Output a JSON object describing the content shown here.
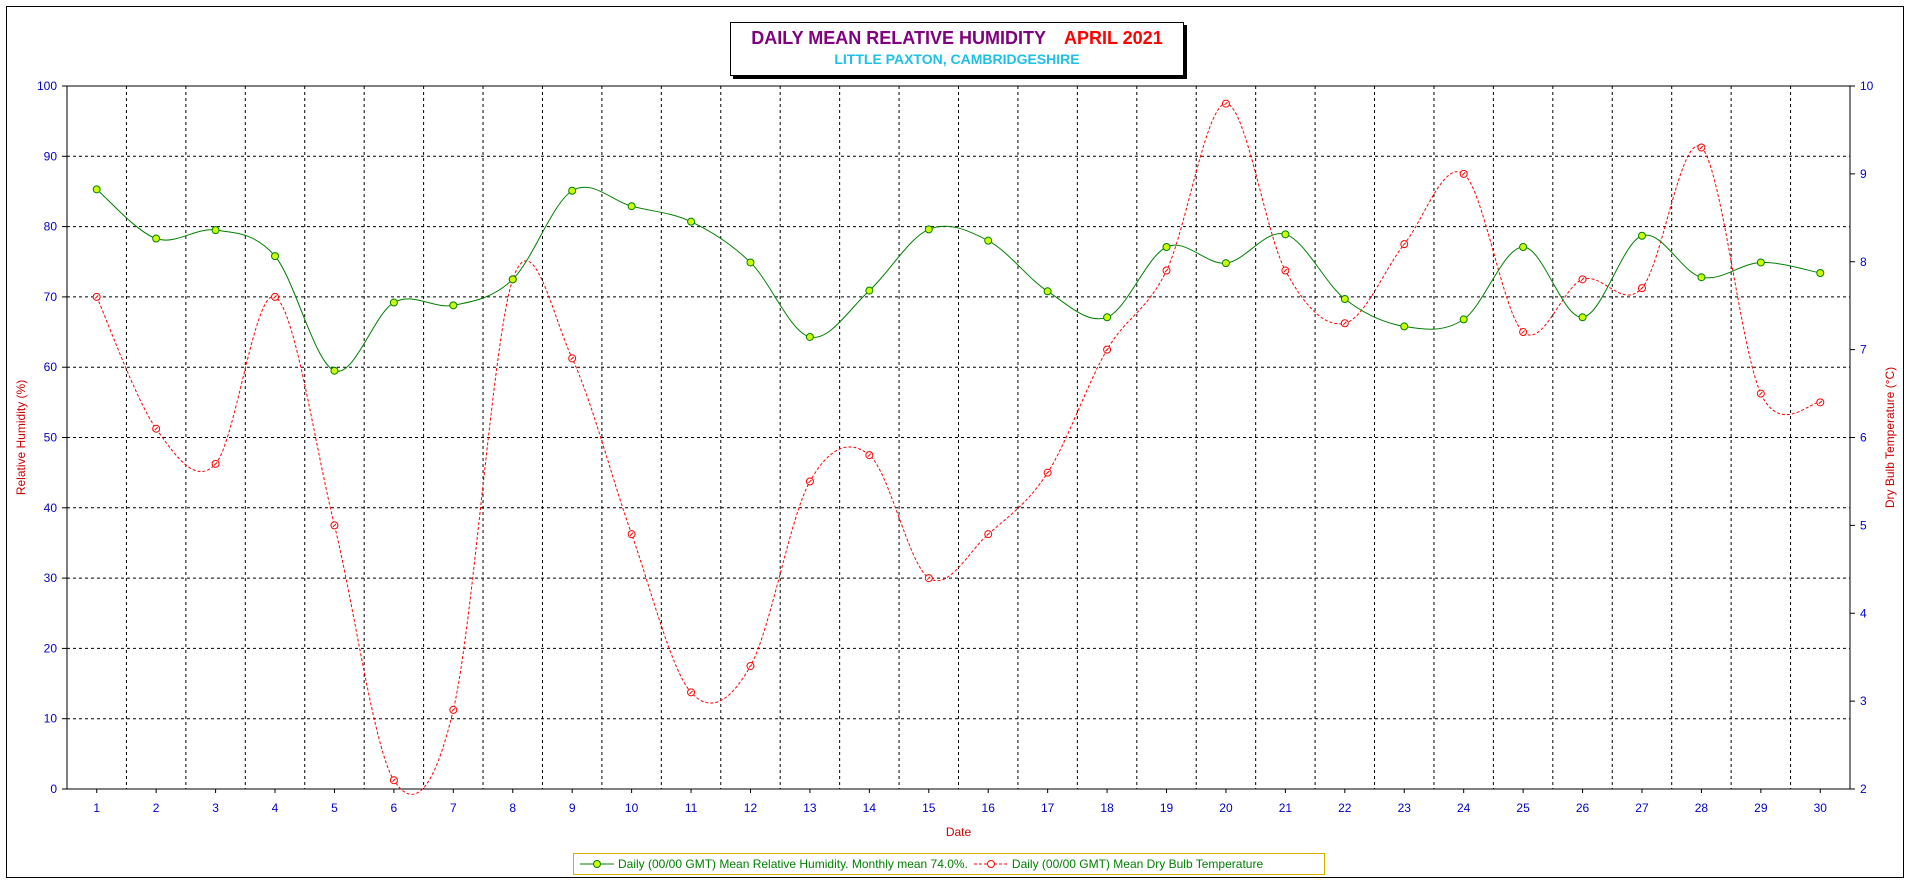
{
  "header": {
    "title": "DAILY MEAN RELATIVE HUMIDITY",
    "month": "APRIL 2021",
    "subtitle": "LITTLE PAXTON, CAMBRIDGESHIRE"
  },
  "legend": {
    "humidity": "Daily (00/00 GMT) Mean Relative Humidity. Monthly mean 74.0%.",
    "temperature": "Daily (00/00 GMT) Mean Dry Bulb Temperature"
  },
  "colors": {
    "humidity_line": "#008000",
    "humidity_marker": "#ccff00",
    "temperature_line": "#ff0000",
    "axis_ticks": "#0000cc",
    "axis_title": "#cc0000"
  },
  "chart_data": {
    "type": "line",
    "title": "DAILY MEAN RELATIVE HUMIDITY APRIL 2021",
    "subtitle": "LITTLE PAXTON, CAMBRIDGESHIRE",
    "xlabel": "Date",
    "ylabel": "Relative Humidity (%)",
    "y2label": "Dry Bulb Temperature (°C)",
    "x": [
      1,
      2,
      3,
      4,
      5,
      6,
      7,
      8,
      9,
      10,
      11,
      12,
      13,
      14,
      15,
      16,
      17,
      18,
      19,
      20,
      21,
      22,
      23,
      24,
      25,
      26,
      27,
      28,
      29,
      30
    ],
    "ylim": [
      0,
      100
    ],
    "y2lim": [
      2,
      10
    ],
    "yticks": [
      0,
      10,
      20,
      30,
      40,
      50,
      60,
      70,
      80,
      90,
      100
    ],
    "y2ticks": [
      2,
      3,
      4,
      5,
      6,
      7,
      8,
      9,
      10
    ],
    "grid": true,
    "legend_position": "bottom",
    "series": [
      {
        "name": "Daily (00/00 GMT) Mean Relative Humidity. Monthly mean 74.0%.",
        "axis": "left",
        "values": [
          85.3,
          78.3,
          79.5,
          75.8,
          59.5,
          69.2,
          68.8,
          72.5,
          85.1,
          82.9,
          80.7,
          74.9,
          64.3,
          70.9,
          79.6,
          78.0,
          70.8,
          67.1,
          77.1,
          74.8,
          78.9,
          69.7,
          65.8,
          66.8,
          77.1,
          67.1,
          78.7,
          72.8,
          74.9,
          73.4
        ]
      },
      {
        "name": "Daily (00/00 GMT) Mean Dry Bulb Temperature",
        "axis": "right",
        "values": [
          7.6,
          6.1,
          5.7,
          7.6,
          5.0,
          2.1,
          2.9,
          7.8,
          6.9,
          4.9,
          3.1,
          3.4,
          5.5,
          5.8,
          4.4,
          4.9,
          5.6,
          7.0,
          7.9,
          9.8,
          7.9,
          7.3,
          8.2,
          9.0,
          7.2,
          7.8,
          7.7,
          9.3,
          6.5,
          6.4
        ]
      }
    ]
  }
}
